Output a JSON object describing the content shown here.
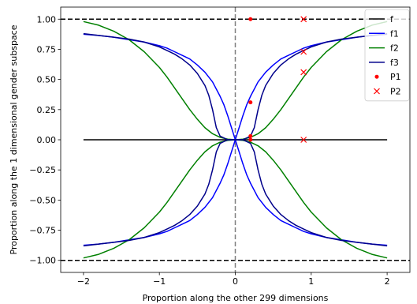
{
  "chart_data": {
    "type": "line",
    "title": "",
    "xlabel": "Proportion along the other 299 dimensions",
    "ylabel": "Proportion along the 1 dimensional gender subspace",
    "xlim": [
      -2.3,
      2.3
    ],
    "ylim": [
      -1.1,
      1.1
    ],
    "grid": false,
    "legend_position": "top-right",
    "x_ticks": [
      -2,
      -1,
      0,
      1,
      2
    ],
    "x_tick_labels": [
      "−2",
      "−1",
      "0",
      "1",
      "2"
    ],
    "y_ticks": [
      -1.0,
      -0.75,
      -0.5,
      -0.25,
      0.0,
      0.25,
      0.5,
      0.75,
      1.0
    ],
    "y_tick_labels": [
      "−1.00",
      "−0.75",
      "−0.50",
      "−0.25",
      "0.00",
      "0.25",
      "0.50",
      "0.75",
      "1.00"
    ],
    "reference_lines": [
      {
        "orientation": "horizontal",
        "value": 1.0,
        "style": "dashed",
        "color": "#000000"
      },
      {
        "orientation": "horizontal",
        "value": -1.0,
        "style": "dashed",
        "color": "#000000"
      },
      {
        "orientation": "vertical",
        "value": 0.0,
        "style": "dashed",
        "color": "#808080"
      }
    ],
    "series": [
      {
        "name": "f",
        "color": "#000000",
        "kind": "line",
        "x": [
          -2,
          2
        ],
        "y": [
          0,
          0
        ]
      },
      {
        "name": "f1",
        "color": "#0000ff",
        "kind": "line",
        "symmetric": true,
        "x": [
          0.0,
          0.02,
          0.05,
          0.1,
          0.15,
          0.2,
          0.3,
          0.4,
          0.5,
          0.6,
          0.7,
          0.8,
          0.9,
          1.0,
          1.2,
          1.4,
          1.6,
          1.8,
          2.0
        ],
        "y": [
          0.0,
          0.04,
          0.1,
          0.2,
          0.29,
          0.36,
          0.48,
          0.56,
          0.62,
          0.67,
          0.7,
          0.73,
          0.76,
          0.78,
          0.81,
          0.83,
          0.85,
          0.865,
          0.875
        ]
      },
      {
        "name": "f2",
        "color": "#008000",
        "kind": "line",
        "symmetric": true,
        "x": [
          0.0,
          0.1,
          0.2,
          0.3,
          0.4,
          0.5,
          0.6,
          0.7,
          0.8,
          0.9,
          1.0,
          1.2,
          1.4,
          1.6,
          1.8,
          2.0
        ],
        "y": [
          0.0,
          0.005,
          0.02,
          0.05,
          0.1,
          0.17,
          0.25,
          0.34,
          0.43,
          0.52,
          0.6,
          0.73,
          0.83,
          0.9,
          0.95,
          0.98
        ]
      },
      {
        "name": "f3",
        "color": "#00008b",
        "kind": "line",
        "symmetric": true,
        "x": [
          0.0,
          0.1,
          0.2,
          0.25,
          0.3,
          0.35,
          0.4,
          0.5,
          0.6,
          0.7,
          0.8,
          0.9,
          1.0,
          1.2,
          1.4,
          1.6,
          1.8,
          2.0
        ],
        "y": [
          0.0,
          0.0,
          0.03,
          0.1,
          0.25,
          0.37,
          0.45,
          0.55,
          0.62,
          0.67,
          0.71,
          0.74,
          0.77,
          0.81,
          0.835,
          0.85,
          0.865,
          0.88
        ]
      },
      {
        "name": "P1",
        "color": "#ff0000",
        "kind": "dots",
        "x": [
          0.2,
          0.2,
          0.2,
          0.2
        ],
        "y": [
          1.0,
          0.31,
          0.03,
          0.0
        ]
      },
      {
        "name": "P2",
        "color": "#ff0000",
        "kind": "crosses",
        "x": [
          0.9,
          0.9,
          0.9,
          0.9
        ],
        "y": [
          1.0,
          0.73,
          0.56,
          0.0
        ]
      }
    ]
  }
}
